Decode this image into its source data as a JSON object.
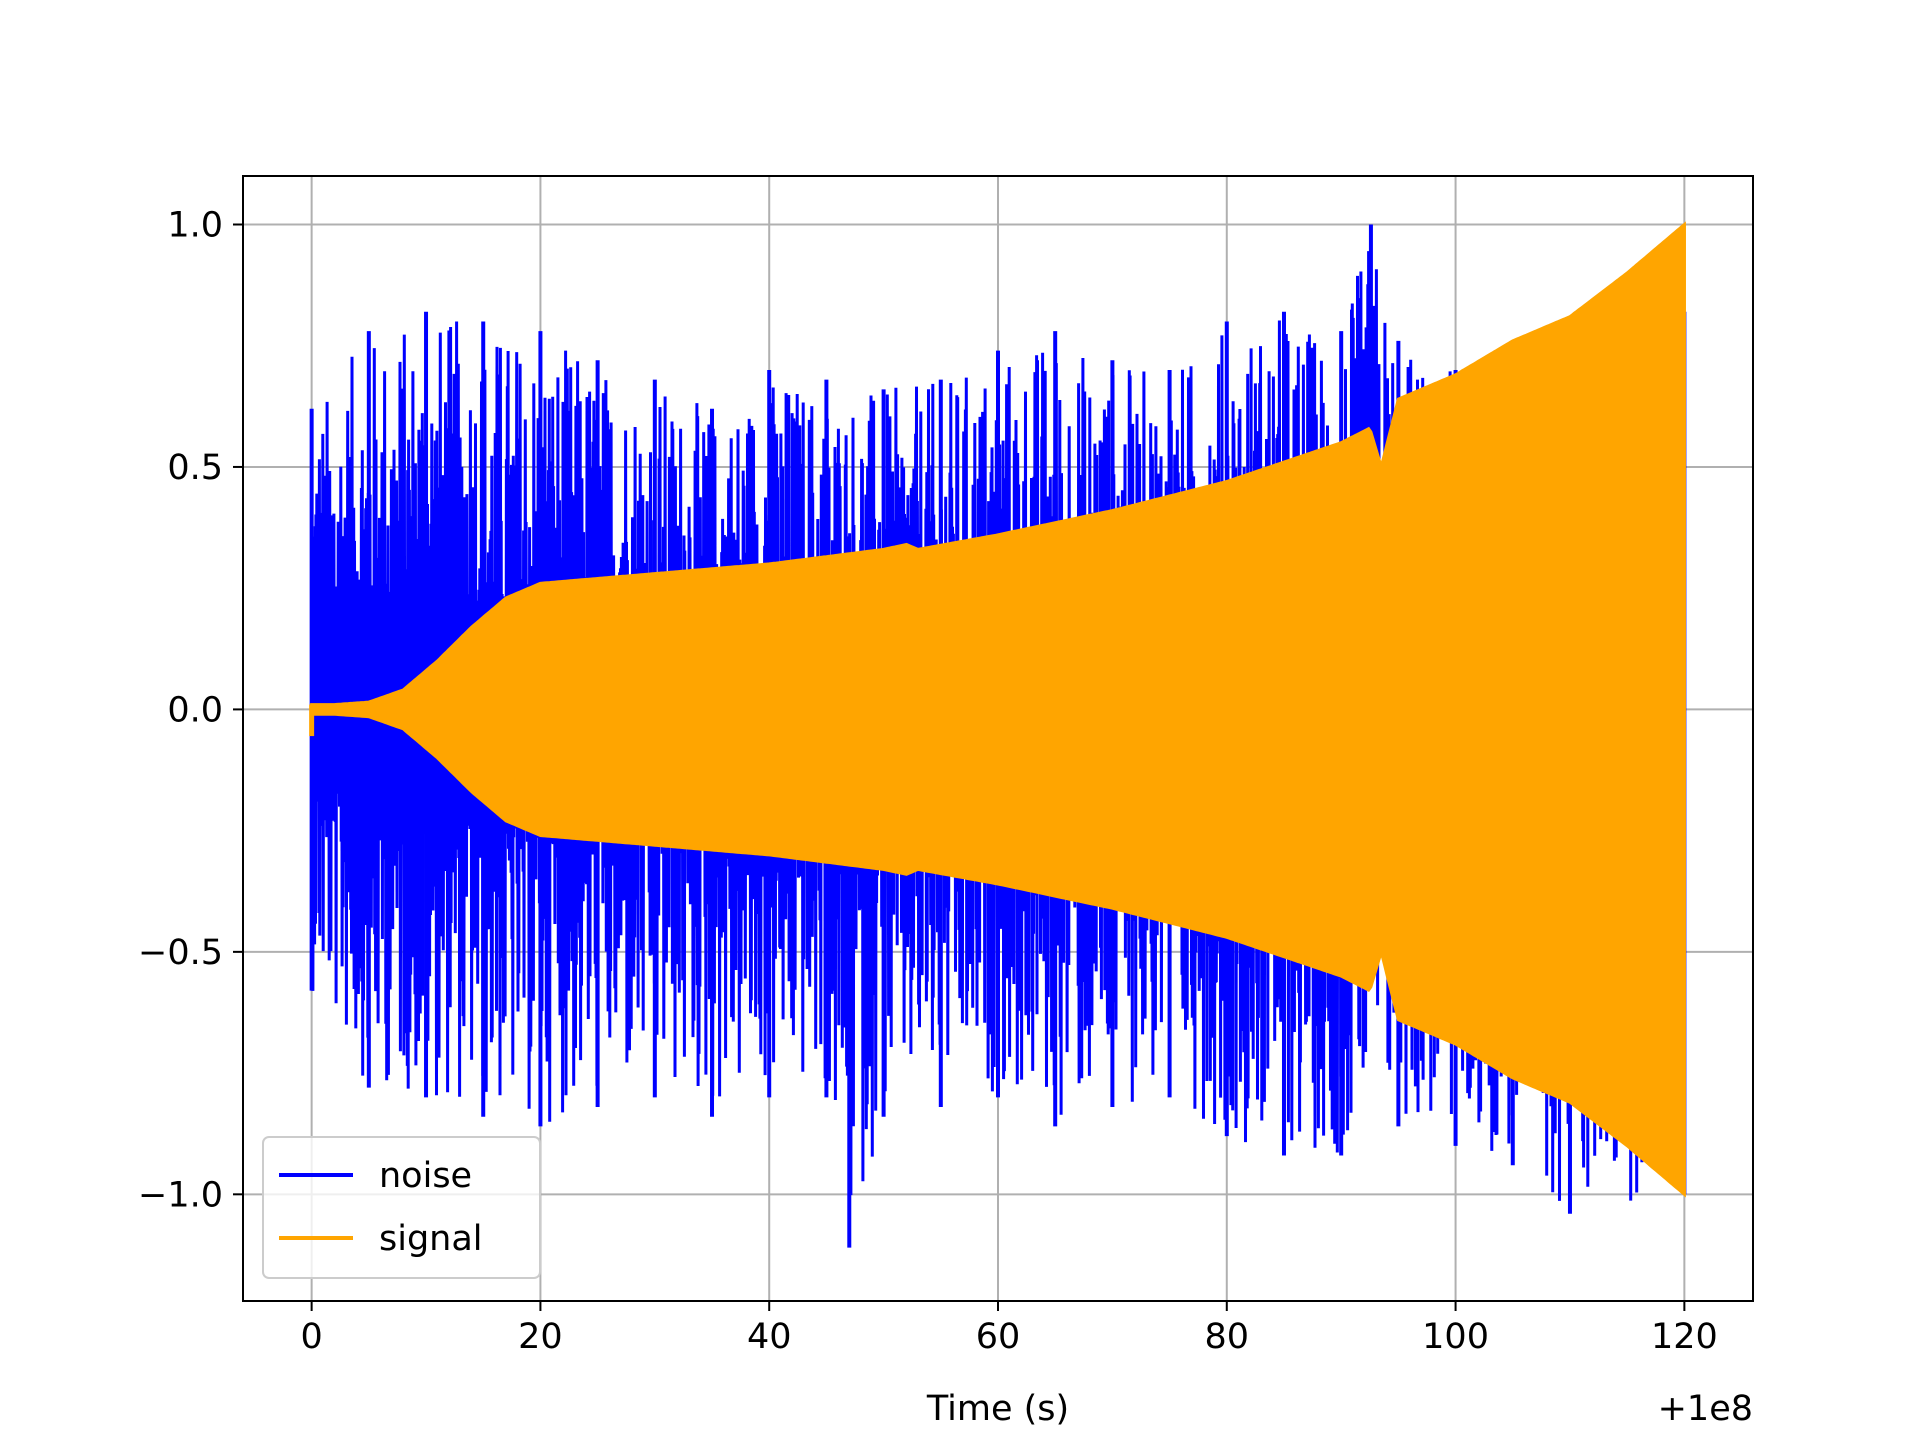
{
  "chart_data": {
    "type": "line",
    "title": "",
    "xlabel": "Time (s)",
    "ylabel": "",
    "x_offset_label": "+1e8",
    "xlim": [
      -6,
      126
    ],
    "ylim": [
      -1.22,
      1.1
    ],
    "xticks": [
      0,
      20,
      40,
      60,
      80,
      100,
      120
    ],
    "xtick_labels": [
      "0",
      "20",
      "40",
      "60",
      "80",
      "100",
      "120"
    ],
    "yticks": [
      1.0,
      0.5,
      0.0,
      -0.5,
      -1.0
    ],
    "ytick_labels": [
      "1.0",
      "0.5",
      "0.0",
      "−0.5",
      "−1.0"
    ],
    "grid": true,
    "legend": {
      "position": "lower-left",
      "entries": [
        "noise",
        "signal"
      ]
    },
    "series": [
      {
        "name": "noise",
        "color": "#0000ff",
        "x_range": [
          0,
          120
        ],
        "upper_envelope": {
          "x": [
            0,
            5,
            10,
            15,
            20,
            25,
            30,
            35,
            40,
            45,
            50,
            55,
            60,
            65,
            70,
            75,
            80,
            85,
            90,
            92.6,
            95,
            100,
            105,
            110,
            120
          ],
          "y": [
            0.62,
            0.78,
            0.82,
            0.8,
            0.78,
            0.72,
            0.68,
            0.62,
            0.7,
            0.68,
            0.66,
            0.68,
            0.74,
            0.78,
            0.72,
            0.7,
            0.8,
            0.82,
            0.78,
            1.0,
            0.76,
            0.7,
            0.72,
            0.8,
            0.82
          ]
        },
        "lower_envelope": {
          "x": [
            0,
            5,
            10,
            15,
            20,
            25,
            30,
            35,
            40,
            45,
            47,
            50,
            55,
            60,
            65,
            70,
            75,
            80,
            85,
            90,
            95,
            100,
            105,
            110,
            120
          ],
          "y": [
            -0.58,
            -0.78,
            -0.8,
            -0.84,
            -0.86,
            -0.82,
            -0.8,
            -0.84,
            -0.8,
            -0.8,
            -1.11,
            -0.84,
            -0.82,
            -0.8,
            -0.86,
            -0.82,
            -0.8,
            -0.88,
            -0.92,
            -0.92,
            -0.86,
            -0.9,
            -0.94,
            -1.04,
            -1.0
          ]
        }
      },
      {
        "name": "signal",
        "color": "#ffa500",
        "x_range": [
          0,
          120
        ],
        "envelope": {
          "x": [
            0,
            2,
            5,
            8,
            11,
            14,
            17,
            20,
            30,
            40,
            50,
            52,
            53,
            60,
            70,
            80,
            90,
            92.5,
            93.5,
            95,
            100,
            105,
            110,
            115,
            120
          ],
          "y": [
            0.01,
            0.01,
            0.015,
            0.04,
            0.1,
            0.17,
            0.23,
            0.26,
            0.28,
            0.3,
            0.33,
            0.34,
            0.33,
            0.36,
            0.41,
            0.47,
            0.55,
            0.58,
            0.5,
            0.64,
            0.69,
            0.76,
            0.81,
            0.9,
            1.0
          ]
        }
      }
    ]
  }
}
